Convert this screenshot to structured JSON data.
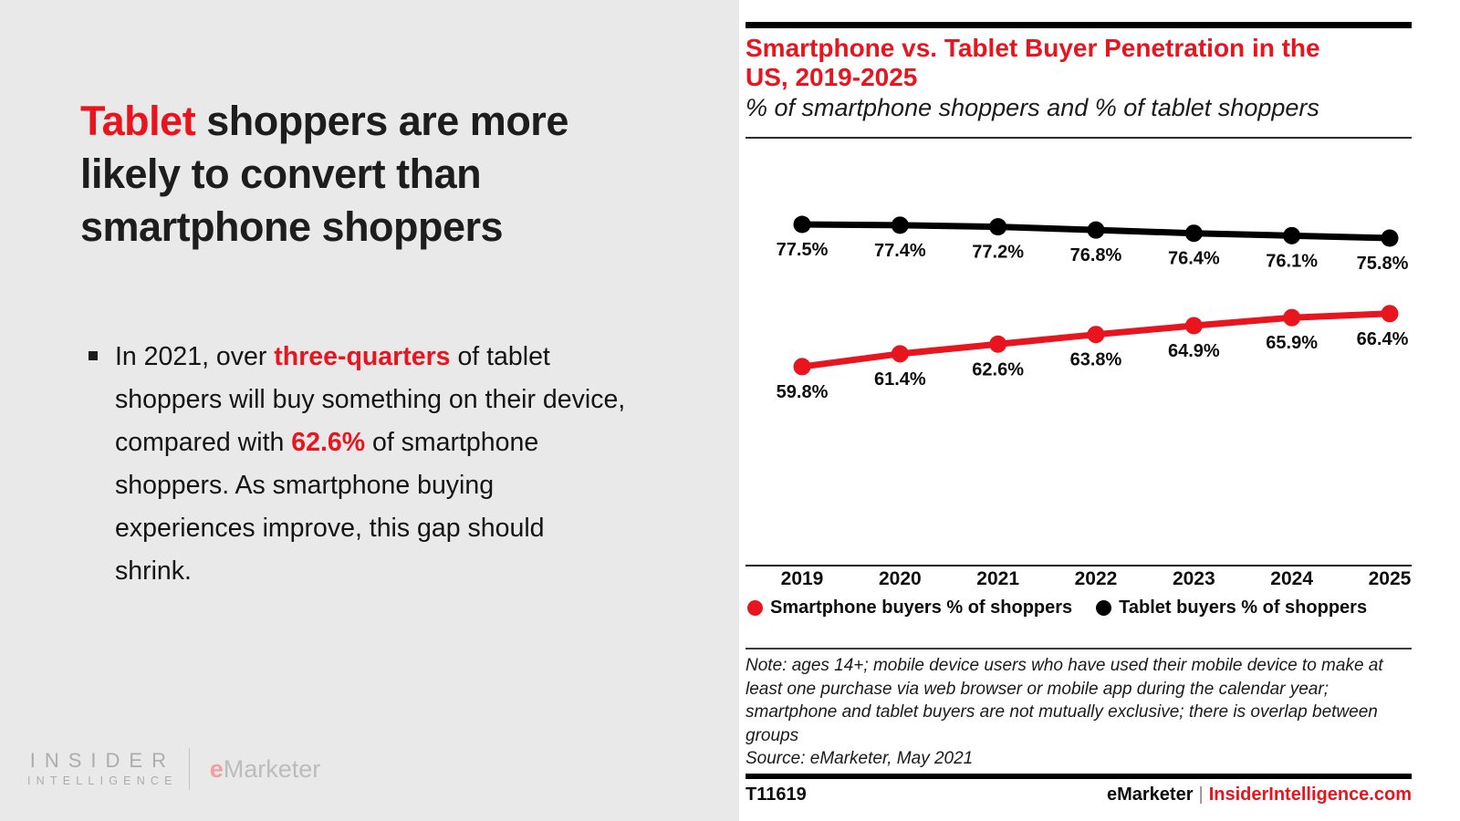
{
  "accent_color": "#e8141e",
  "left_panel": {
    "headline_segments": [
      {
        "text": "Tablet",
        "style": "red"
      },
      {
        "text": " shoppers are more likely to convert than smartphone shoppers",
        "style": "normal"
      }
    ],
    "bullet_segments": [
      {
        "text": "In 2021, over ",
        "style": "normal"
      },
      {
        "text": "three-quarters",
        "style": "red-bold"
      },
      {
        "text": " of tablet shoppers will buy something on their device, compared with ",
        "style": "normal"
      },
      {
        "text": "62.6%",
        "style": "red-bold"
      },
      {
        "text": " of smartphone shoppers. As smartphone buying experiences improve, this gap should shrink.",
        "style": "normal"
      }
    ],
    "logo": {
      "insider_line1": "INSIDER",
      "insider_line2": "INTELLIGENCE",
      "emarketer_e": "e",
      "emarketer_rest": "Marketer"
    }
  },
  "chart_panel": {
    "title": "Smartphone vs. Tablet Buyer Penetration in the US, 2019-2025",
    "subtitle": "% of smartphone shoppers and % of tablet shoppers"
  },
  "chart_data": {
    "type": "line",
    "title": "Smartphone vs. Tablet Buyer Penetration in the US, 2019-2025",
    "subtitle": "% of smartphone shoppers and % of tablet shoppers",
    "categories": [
      "2019",
      "2020",
      "2021",
      "2022",
      "2023",
      "2024",
      "2025"
    ],
    "series": [
      {
        "name": "Smartphone buyers % of shoppers",
        "color": "#e8141e",
        "values": [
          59.8,
          61.4,
          62.6,
          63.8,
          64.9,
          65.9,
          66.4
        ]
      },
      {
        "name": "Tablet buyers % of shoppers",
        "color": "#000000",
        "values": [
          77.5,
          77.4,
          77.2,
          76.8,
          76.4,
          76.1,
          75.8
        ]
      }
    ],
    "data_label_format": "{value}%",
    "grid": false,
    "legend_position": "bottom",
    "y_implied_range": [
      59,
      78
    ]
  },
  "note": {
    "text": "Note: ages 14+; mobile device users who have used their mobile device to make at least one purchase via web browser or mobile app during the calendar year; smartphone and tablet buyers are not mutually exclusive; there is overlap between groups",
    "source": "Source: eMarketer, May 2021"
  },
  "footer": {
    "chart_id": "T11619",
    "brand": "eMarketer",
    "separator": "|",
    "site": "InsiderIntelligence.com"
  }
}
